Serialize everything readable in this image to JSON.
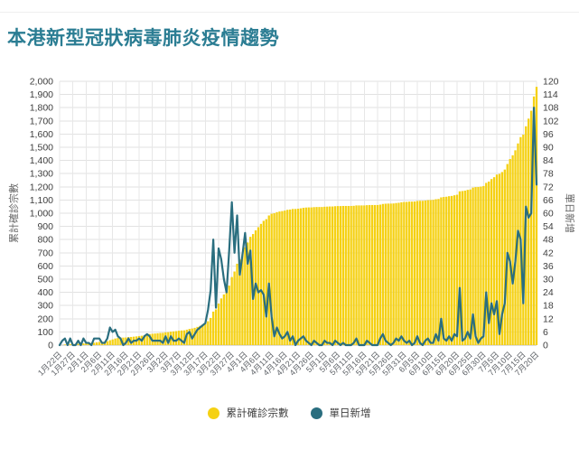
{
  "page": {
    "title": "本港新型冠狀病毒肺炎疫情趨勢"
  },
  "chart_data": {
    "type": "combo_bar_line",
    "title": "本港新型冠狀病毒肺炎疫情趨勢",
    "grid": true,
    "x_axis": {
      "start": "1月22日",
      "end": "7月20日",
      "interval_days": 1,
      "tick_every_n_points": 5
    },
    "x_tick_labels": [
      "1月22日",
      "1月27日",
      "2月1日",
      "2月6日",
      "2月11日",
      "2月16日",
      "2月21日",
      "2月26日",
      "3月2日",
      "3月7日",
      "3月12日",
      "3月17日",
      "3月22日",
      "3月27日",
      "4月1日",
      "4月6日",
      "4月11日",
      "4月16日",
      "4月21日",
      "4月26日",
      "5月1日",
      "5月6日",
      "5月11日",
      "5月16日",
      "5月21日",
      "5月26日",
      "5月31日",
      "6月5日",
      "6月10日",
      "6月15日",
      "6月20日",
      "6月25日",
      "6月30日",
      "7月5日",
      "7月10日",
      "7月15日",
      "7月20日"
    ],
    "dates": [
      "1月22日",
      "1月23日",
      "1月24日",
      "1月25日",
      "1月26日",
      "1月27日",
      "1月28日",
      "1月29日",
      "1月30日",
      "1月31日",
      "2月1日",
      "2月2日",
      "2月3日",
      "2月4日",
      "2月5日",
      "2月6日",
      "2月7日",
      "2月8日",
      "2月9日",
      "2月10日",
      "2月11日",
      "2月12日",
      "2月13日",
      "2月14日",
      "2月15日",
      "2月16日",
      "2月17日",
      "2月18日",
      "2月19日",
      "2月20日",
      "2月21日",
      "2月22日",
      "2月23日",
      "2月24日",
      "2月25日",
      "2月26日",
      "2月27日",
      "2月28日",
      "2月29日",
      "3月1日",
      "3月2日",
      "3月3日",
      "3月4日",
      "3月5日",
      "3月6日",
      "3月7日",
      "3月8日",
      "3月9日",
      "3月10日",
      "3月11日",
      "3月12日",
      "3月13日",
      "3月14日",
      "3月15日",
      "3月16日",
      "3月17日",
      "3月18日",
      "3月19日",
      "3月20日",
      "3月21日",
      "3月22日",
      "3月23日",
      "3月24日",
      "3月25日",
      "3月26日",
      "3月27日",
      "3月28日",
      "3月29日",
      "3月30日",
      "3月31日",
      "4月1日",
      "4月2日",
      "4月3日",
      "4月4日",
      "4月5日",
      "4月6日",
      "4月7日",
      "4月8日",
      "4月9日",
      "4月10日",
      "4月11日",
      "4月12日",
      "4月13日",
      "4月14日",
      "4月15日",
      "4月16日",
      "4月17日",
      "4月18日",
      "4月19日",
      "4月20日",
      "4月21日",
      "4月22日",
      "4月23日",
      "4月24日",
      "4月25日",
      "4月26日",
      "4月27日",
      "4月28日",
      "4月29日",
      "4月30日",
      "5月1日",
      "5月2日",
      "5月3日",
      "5月4日",
      "5月5日",
      "5月6日",
      "5月7日",
      "5月8日",
      "5月9日",
      "5月10日",
      "5月11日",
      "5月12日",
      "5月13日",
      "5月14日",
      "5月15日",
      "5月16日",
      "5月17日",
      "5月18日",
      "5月19日",
      "5月20日",
      "5月21日",
      "5月22日",
      "5月23日",
      "5月24日",
      "5月25日",
      "5月26日",
      "5月27日",
      "5月28日",
      "5月29日",
      "5月30日",
      "5月31日",
      "6月1日",
      "6月2日",
      "6月3日",
      "6月4日",
      "6月5日",
      "6月6日",
      "6月7日",
      "6月8日",
      "6月9日",
      "6月10日",
      "6月11日",
      "6月12日",
      "6月13日",
      "6月14日",
      "6月15日",
      "6月16日",
      "6月17日",
      "6月18日",
      "6月19日",
      "6月20日",
      "6月21日",
      "6月22日",
      "6月23日",
      "6月24日",
      "6月25日",
      "6月26日",
      "6月27日",
      "6月28日",
      "6月29日",
      "6月30日",
      "7月1日",
      "7月2日",
      "7月3日",
      "7月4日",
      "7月5日",
      "7月6日",
      "7月7日",
      "7月8日",
      "7月9日",
      "7月10日",
      "7月11日",
      "7月12日",
      "7月13日",
      "7月14日",
      "7月15日",
      "7月16日",
      "7月17日",
      "7月18日",
      "7月19日",
      "7月20日"
    ],
    "y_left": {
      "label": "累計確診宗數",
      "min": 0,
      "max": 2000,
      "step": 100,
      "ticks": [
        "2,000",
        "1,900",
        "1,800",
        "1,700",
        "1,600",
        "1,500",
        "1,400",
        "1,300",
        "1,200",
        "1,100",
        "1,000",
        "900",
        "800",
        "700",
        "600",
        "500",
        "400",
        "300",
        "200",
        "100",
        "0"
      ]
    },
    "y_right": {
      "label": "單日新增",
      "min": 0,
      "max": 120,
      "step": 6,
      "ticks": [
        "120",
        "114",
        "108",
        "102",
        "96",
        "90",
        "84",
        "78",
        "72",
        "66",
        "60",
        "54",
        "48",
        "42",
        "36",
        "30",
        "24",
        "18",
        "12",
        "6",
        "0"
      ]
    },
    "series": [
      {
        "name": "累計確診宗數",
        "type": "bar",
        "axis": "left",
        "color": "#F5D113",
        "values": [
          0,
          2,
          5,
          5,
          8,
          8,
          8,
          10,
          10,
          13,
          14,
          15,
          15,
          18,
          21,
          24,
          25,
          26,
          29,
          37,
          43,
          50,
          54,
          57,
          57,
          58,
          61,
          62,
          64,
          66,
          69,
          71,
          75,
          80,
          84,
          86,
          88,
          90,
          92,
          93,
          97,
          98,
          102,
          104,
          106,
          109,
          111,
          112,
          117,
          123,
          126,
          131,
          138,
          146,
          155,
          165,
          181,
          206,
          254,
          271,
          315,
          354,
          384,
          408,
          451,
          516,
          558,
          617,
          649,
          690,
          741,
          778,
          821,
          842,
          870,
          894,
          919,
          942,
          955,
          983,
          996,
          1000,
          1008,
          1013,
          1016,
          1020,
          1026,
          1028,
          1032,
          1032,
          1034,
          1037,
          1041,
          1043,
          1044,
          1044,
          1046,
          1047,
          1047,
          1047,
          1049,
          1050,
          1051,
          1051,
          1053,
          1054,
          1054,
          1055,
          1055,
          1055,
          1055,
          1056,
          1059,
          1059,
          1059,
          1059,
          1061,
          1062,
          1062,
          1062,
          1062,
          1065,
          1070,
          1072,
          1073,
          1073,
          1074,
          1077,
          1079,
          1083,
          1085,
          1086,
          1088,
          1088,
          1089,
          1093,
          1094,
          1094,
          1096,
          1099,
          1100,
          1101,
          1106,
          1108,
          1120,
          1123,
          1125,
          1129,
          1131,
          1136,
          1140,
          1166,
          1168,
          1171,
          1177,
          1180,
          1194,
          1198,
          1199,
          1202,
          1206,
          1230,
          1240,
          1259,
          1273,
          1293,
          1298,
          1312,
          1331,
          1373,
          1411,
          1439,
          1477,
          1529,
          1577,
          1596,
          1659,
          1717,
          1777,
          1885,
          1958
        ]
      },
      {
        "name": "單日新增",
        "type": "line",
        "axis": "right",
        "color": "#2A6E7F",
        "values": [
          0,
          2,
          3,
          0,
          3,
          0,
          0,
          2,
          0,
          3,
          1,
          1,
          0,
          3,
          3,
          3,
          1,
          1,
          3,
          8,
          6,
          7,
          4,
          3,
          0,
          1,
          3,
          1,
          2,
          2,
          3,
          2,
          4,
          5,
          4,
          2,
          2,
          2,
          2,
          1,
          4,
          1,
          4,
          2,
          2,
          3,
          2,
          1,
          5,
          6,
          3,
          5,
          7,
          8,
          9,
          10,
          16,
          25,
          48,
          17,
          44,
          39,
          30,
          24,
          43,
          65,
          42,
          59,
          32,
          41,
          51,
          37,
          43,
          21,
          28,
          24,
          25,
          23,
          13,
          28,
          13,
          4,
          8,
          5,
          3,
          4,
          6,
          2,
          4,
          0,
          2,
          3,
          4,
          2,
          1,
          0,
          2,
          1,
          0,
          0,
          2,
          1,
          1,
          0,
          2,
          1,
          0,
          1,
          0,
          0,
          0,
          1,
          3,
          0,
          0,
          0,
          2,
          1,
          0,
          0,
          0,
          3,
          5,
          2,
          1,
          0,
          1,
          3,
          2,
          4,
          2,
          1,
          2,
          0,
          1,
          4,
          1,
          0,
          2,
          3,
          1,
          1,
          5,
          2,
          12,
          3,
          2,
          4,
          2,
          5,
          4,
          26,
          2,
          3,
          6,
          3,
          14,
          4,
          1,
          3,
          4,
          24,
          10,
          19,
          14,
          20,
          5,
          14,
          19,
          42,
          38,
          28,
          38,
          52,
          48,
          19,
          63,
          58,
          60,
          108,
          73
        ]
      }
    ],
    "legend": {
      "position": "bottom",
      "items": [
        {
          "label": "累計確診宗數",
          "color": "#F5D113"
        },
        {
          "label": "單日新增",
          "color": "#2A6E7F"
        }
      ]
    }
  }
}
